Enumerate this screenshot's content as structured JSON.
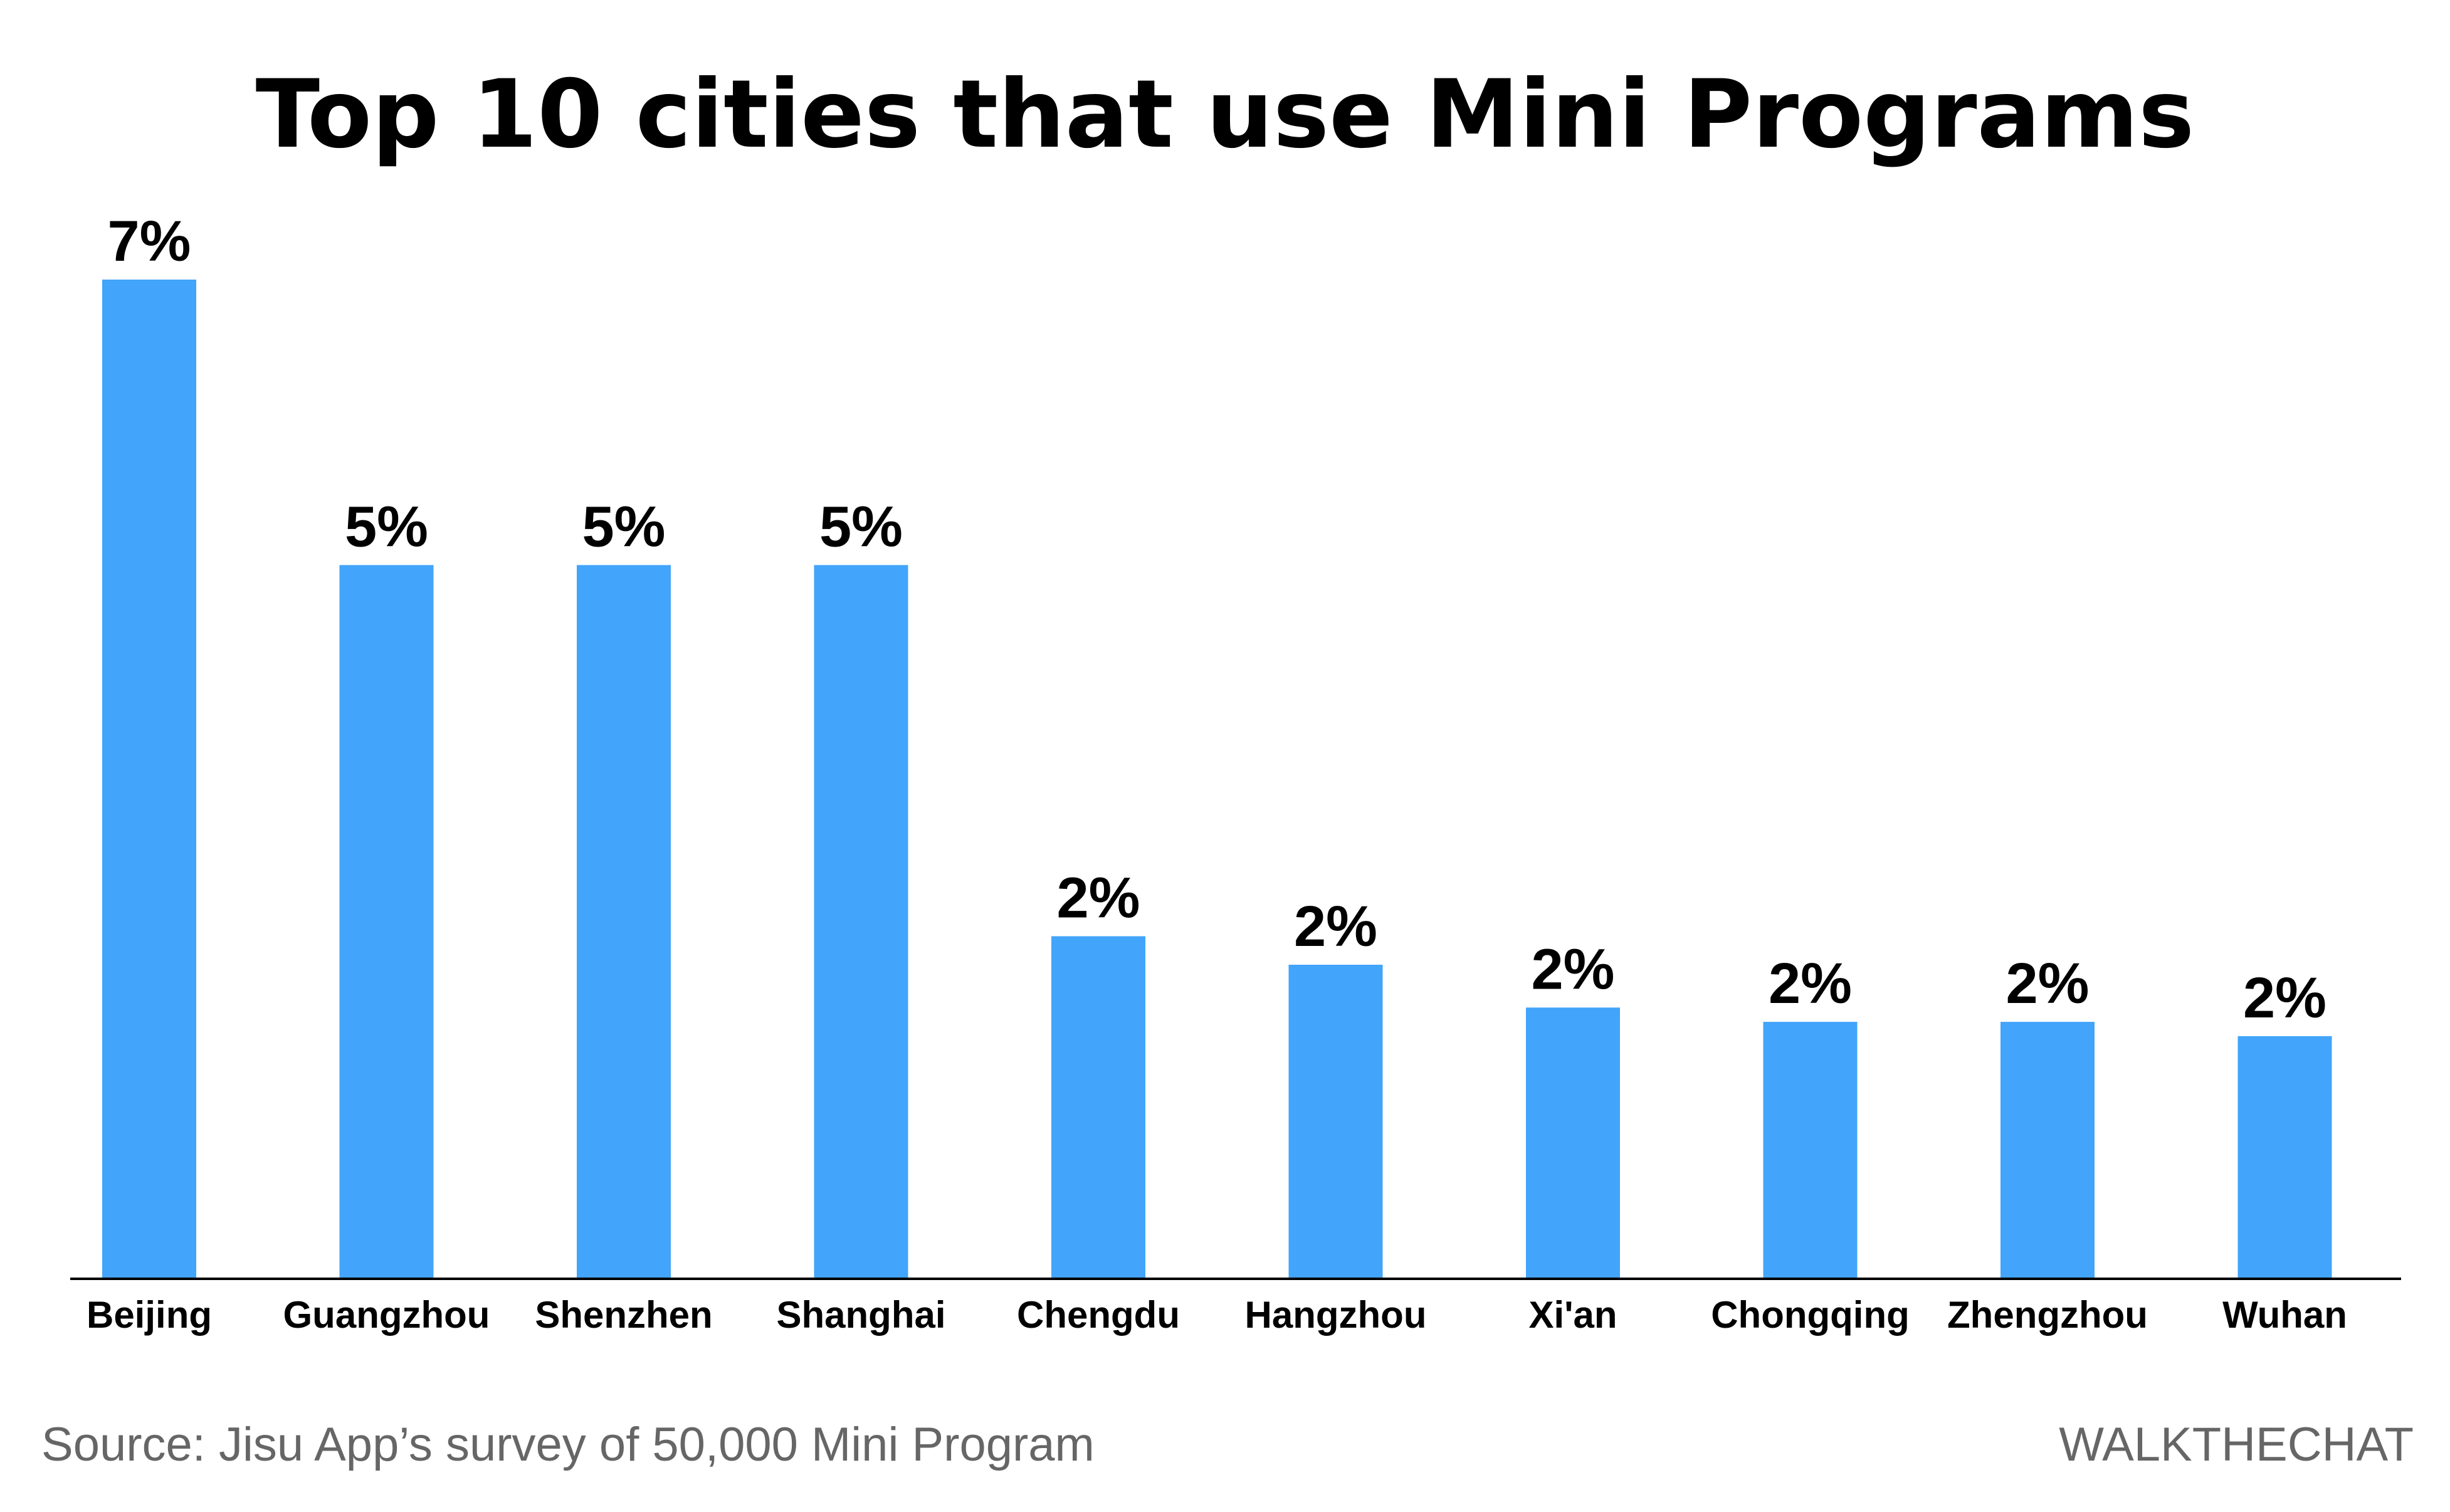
{
  "colors": {
    "bar": "#42A4FA",
    "axis": "#000000",
    "text": "#000000",
    "footer_text": "#666666",
    "background": "#FFFFFF"
  },
  "footer": {
    "source": "Source: Jisu App’s survey of 50,000 Mini Program",
    "brand": "WALKTHECHAT"
  },
  "chart_data": {
    "type": "bar",
    "title": "Top 10 cities that use Mini Programs",
    "xlabel": "",
    "ylabel": "",
    "categories": [
      "Beijing",
      "Guangzhou",
      "Shenzhen",
      "Shanghai",
      "Chengdu",
      "Hangzhou",
      "Xi'an",
      "Chongqing",
      "Zhengzhou",
      "Wuhan"
    ],
    "values": [
      7.0,
      5.0,
      5.0,
      5.0,
      2.4,
      2.2,
      1.9,
      1.8,
      1.8,
      1.7
    ],
    "value_labels": [
      "7%",
      "5%",
      "5%",
      "5%",
      "2%",
      "2%",
      "2%",
      "2%",
      "2%",
      "2%"
    ],
    "unit": "%",
    "ylim": [
      0,
      7
    ],
    "grid": false,
    "legend": "none"
  }
}
